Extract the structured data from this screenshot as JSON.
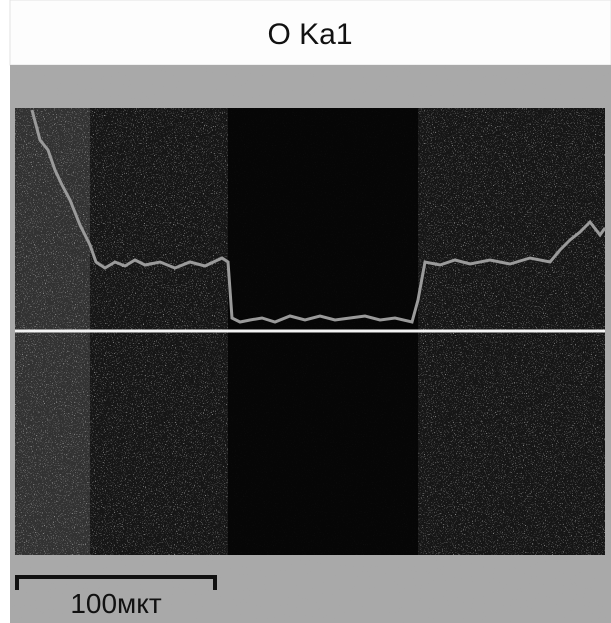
{
  "title": "O Ka1",
  "scale_bar": {
    "label": "100мкт"
  }
}
